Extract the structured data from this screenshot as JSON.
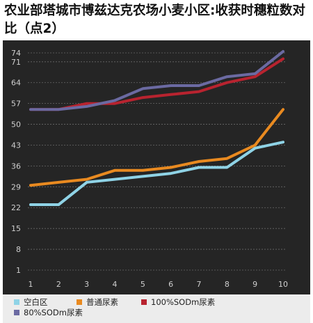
{
  "chart_data": {
    "type": "line",
    "title": "农业部塔城市博兹达克农场小麦小区:收获时穗粒数对比（点2）",
    "x": [
      1,
      2,
      3,
      4,
      5,
      6,
      7,
      8,
      9,
      10
    ],
    "x_ticks": [
      "1",
      "2",
      "3",
      "4",
      "5",
      "6",
      "7",
      "8",
      "9",
      "10"
    ],
    "y_ticks": [
      1,
      8,
      15,
      22,
      29,
      36,
      43,
      50,
      57,
      64,
      71,
      74
    ],
    "ylim": [
      1,
      74
    ],
    "grid": true,
    "legend_position": "bottom",
    "series": [
      {
        "name": "空白区",
        "color": "#8fd3e6",
        "values": [
          23,
          23,
          30.5,
          31.5,
          32.5,
          33.5,
          35.5,
          35.5,
          42,
          44
        ]
      },
      {
        "name": "普通尿素",
        "color": "#e98a20",
        "values": [
          29.5,
          30.5,
          31.5,
          34.5,
          34.5,
          35.5,
          37.5,
          38.5,
          43,
          55
        ]
      },
      {
        "name": "100%SODm尿素",
        "color": "#b8232f",
        "values": [
          55,
          55,
          57,
          57,
          59,
          60,
          61,
          64,
          66,
          72
        ]
      },
      {
        "name": "80%SODm尿素",
        "color": "#6b6aa2",
        "values": [
          55,
          55,
          56,
          58,
          62,
          63,
          63,
          66,
          67,
          74.5
        ]
      }
    ]
  }
}
